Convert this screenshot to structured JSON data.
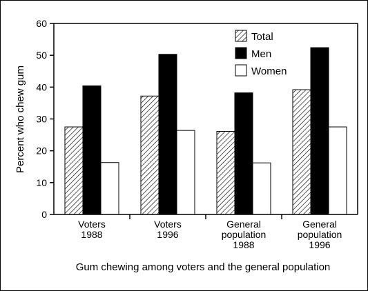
{
  "chart_data": {
    "type": "bar",
    "categories": [
      [
        "Voters",
        "1988"
      ],
      [
        "Voters",
        "1996"
      ],
      [
        "General",
        "population",
        "1988"
      ],
      [
        "General",
        "population",
        "1996"
      ]
    ],
    "series": [
      {
        "name": "Total",
        "values": [
          27.5,
          37.2,
          26.1,
          39.2
        ],
        "fill": "hatch"
      },
      {
        "name": "Men",
        "values": [
          40.4,
          50.3,
          38.2,
          52.4
        ],
        "fill": "#000000"
      },
      {
        "name": "Women",
        "values": [
          16.3,
          26.4,
          16.2,
          27.5
        ],
        "fill": "#ffffff"
      }
    ],
    "ylabel": "Percent who chew gum",
    "xlabel": "Gum chewing among voters and the general population",
    "ylim": [
      0,
      60
    ],
    "yticks": [
      0,
      10,
      20,
      30,
      40,
      50,
      60
    ],
    "legend": "top-right",
    "grid": false
  }
}
